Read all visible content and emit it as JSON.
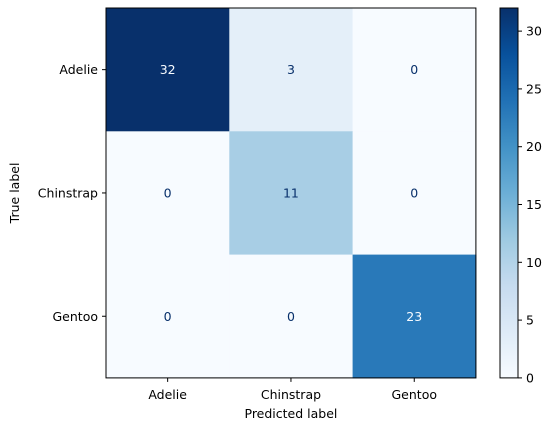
{
  "chart_data": {
    "type": "heatmap",
    "title": "",
    "xlabel": "Predicted label",
    "ylabel": "True label",
    "x_categories": [
      "Adelie",
      "Chinstrap",
      "Gentoo"
    ],
    "y_categories": [
      "Adelie",
      "Chinstrap",
      "Gentoo"
    ],
    "matrix": [
      [
        32,
        3,
        0
      ],
      [
        0,
        11,
        0
      ],
      [
        0,
        0,
        23
      ]
    ],
    "colormap": "Blues",
    "colorbar": {
      "range": [
        0,
        32
      ],
      "ticks": [
        0,
        5,
        10,
        15,
        20,
        25,
        30
      ]
    },
    "text_colors": {
      "on_light": "#08306b",
      "on_dark": "#f7fbff"
    }
  }
}
